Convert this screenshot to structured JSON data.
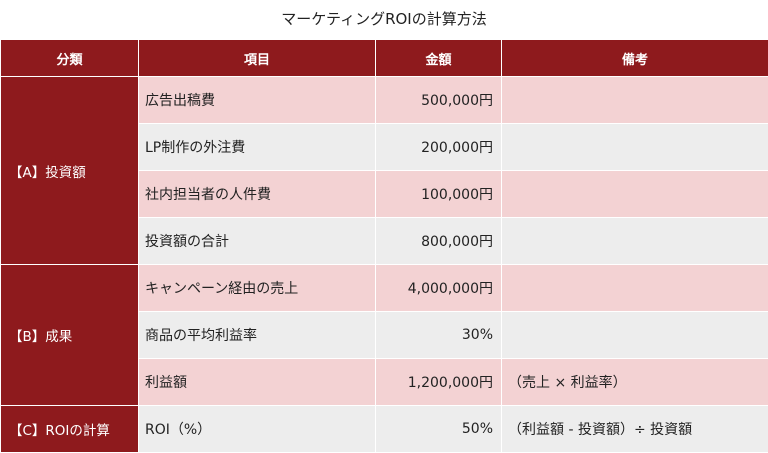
{
  "title": "マーケティングROIの計算方法",
  "headers": {
    "category": "分類",
    "item": "項目",
    "amount": "金額",
    "note": "備考"
  },
  "groups": {
    "a": {
      "category": "【A】投資額",
      "rows": [
        {
          "item": "広告出稿費",
          "amount": "500,000円",
          "note": ""
        },
        {
          "item": "LP制作の外注費",
          "amount": "200,000円",
          "note": ""
        },
        {
          "item": "社内担当者の人件費",
          "amount": "100,000円",
          "note": ""
        },
        {
          "item": "投資額の合計",
          "amount": "800,000円",
          "note": ""
        }
      ]
    },
    "b": {
      "category": "【B】成果",
      "rows": [
        {
          "item": "キャンペーン経由の売上",
          "amount": "4,000,000円",
          "note": ""
        },
        {
          "item": "商品の平均利益率",
          "amount": "30%",
          "note": ""
        },
        {
          "item": "利益額",
          "amount": "1,200,000円",
          "note": "（売上 × 利益率）"
        }
      ]
    },
    "c": {
      "category": "【C】ROIの計算",
      "rows": [
        {
          "item": "ROI（%）",
          "amount": "50%",
          "note": "（利益額 - 投資額）÷ 投資額"
        }
      ]
    }
  },
  "colors": {
    "header_bg": "#8e1a1d",
    "row_pink": "#f3d2d3",
    "row_grey": "#ededed"
  }
}
